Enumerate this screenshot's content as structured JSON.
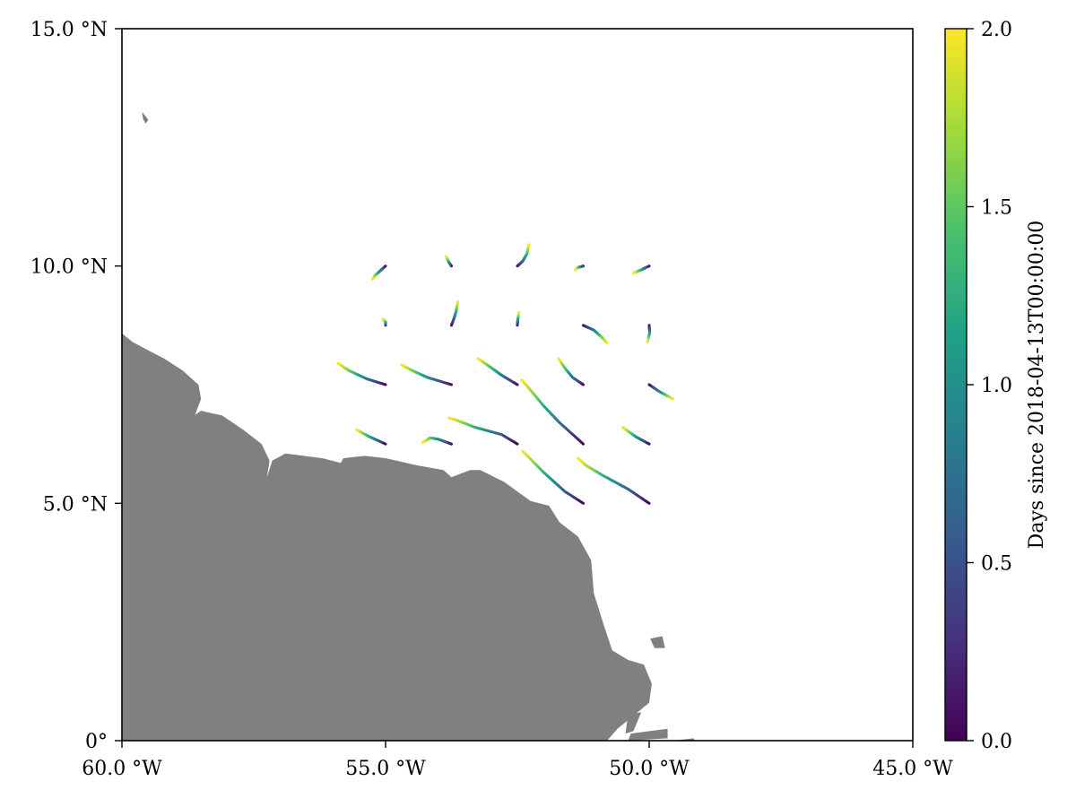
{
  "map": {
    "lon_range": [
      -60.0,
      -45.0
    ],
    "lat_range": [
      0.0,
      15.0
    ],
    "land_color": "#808080",
    "ocean_color": "#ffffff",
    "x_ticks": [
      {
        "value": -60.0,
        "label": "60.0 °W"
      },
      {
        "value": -55.0,
        "label": "55.0 °W"
      },
      {
        "value": -50.0,
        "label": "50.0 °W"
      },
      {
        "value": -45.0,
        "label": "45.0 °W"
      }
    ],
    "y_ticks": [
      {
        "value": 0.0,
        "label": "0°"
      },
      {
        "value": 5.0,
        "label": "5.0 °N"
      },
      {
        "value": 10.0,
        "label": "10.0 °N"
      },
      {
        "value": 15.0,
        "label": "15.0 °N"
      }
    ],
    "coastline": [
      [
        -60.0,
        8.58
      ],
      [
        -59.8,
        8.4
      ],
      [
        -59.55,
        8.25
      ],
      [
        -59.2,
        8.05
      ],
      [
        -58.85,
        7.8
      ],
      [
        -58.55,
        7.5
      ],
      [
        -58.5,
        7.2
      ],
      [
        -58.6,
        6.9
      ],
      [
        -58.7,
        6.65
      ],
      [
        -58.8,
        6.6
      ],
      [
        -58.7,
        6.8
      ],
      [
        -58.5,
        6.95
      ],
      [
        -58.1,
        6.85
      ],
      [
        -57.7,
        6.55
      ],
      [
        -57.35,
        6.25
      ],
      [
        -57.2,
        5.9
      ],
      [
        -57.25,
        5.55
      ],
      [
        -57.15,
        5.9
      ],
      [
        -56.9,
        6.05
      ],
      [
        -56.2,
        5.95
      ],
      [
        -55.85,
        5.85
      ],
      [
        -55.8,
        5.95
      ],
      [
        -55.4,
        6.0
      ],
      [
        -55.0,
        5.95
      ],
      [
        -54.4,
        5.8
      ],
      [
        -53.9,
        5.7
      ],
      [
        -53.75,
        5.55
      ],
      [
        -53.4,
        5.7
      ],
      [
        -53.2,
        5.7
      ],
      [
        -52.75,
        5.45
      ],
      [
        -52.25,
        5.05
      ],
      [
        -51.9,
        4.95
      ],
      [
        -51.7,
        4.6
      ],
      [
        -51.35,
        4.3
      ],
      [
        -51.1,
        3.8
      ],
      [
        -51.05,
        3.1
      ],
      [
        -50.85,
        2.4
      ],
      [
        -50.7,
        1.9
      ],
      [
        -50.4,
        1.7
      ],
      [
        -50.1,
        1.6
      ],
      [
        -49.95,
        1.2
      ],
      [
        -50.0,
        0.8
      ],
      [
        -50.6,
        0.25
      ],
      [
        -50.8,
        0.0
      ],
      [
        -60.0,
        0.0
      ]
    ],
    "islands": [
      [
        [
          -59.62,
          13.25
        ],
        [
          -59.5,
          13.08
        ],
        [
          -59.55,
          13.0
        ],
        [
          -59.6,
          13.1
        ]
      ],
      [
        [
          -49.98,
          2.15
        ],
        [
          -49.75,
          2.2
        ],
        [
          -49.7,
          1.95
        ],
        [
          -49.9,
          1.95
        ]
      ],
      [
        [
          -50.4,
          0.55
        ],
        [
          -50.15,
          0.6
        ],
        [
          -50.3,
          0.2
        ],
        [
          -50.45,
          0.15
        ]
      ],
      [
        [
          -50.35,
          0.15
        ],
        [
          -49.65,
          0.25
        ],
        [
          -49.65,
          0.05
        ],
        [
          -50.4,
          0.0
        ]
      ],
      [
        [
          -49.55,
          0.0
        ],
        [
          -49.15,
          0.05
        ],
        [
          -49.15,
          0.0
        ]
      ]
    ]
  },
  "colorbar": {
    "title": "Days since 2018-04-13T00:00:00",
    "min": 0.0,
    "max": 2.0,
    "colormap": [
      "#440154",
      "#46327e",
      "#365c8d",
      "#277f8e",
      "#1fa187",
      "#4ac16d",
      "#a0da39",
      "#fde725"
    ],
    "ticks": [
      {
        "value": 0.0,
        "label": "0.0"
      },
      {
        "value": 0.5,
        "label": "0.5"
      },
      {
        "value": 1.0,
        "label": "1.0"
      },
      {
        "value": 1.5,
        "label": "1.5"
      },
      {
        "value": 2.0,
        "label": "2.0"
      }
    ]
  },
  "trajectories": [
    {
      "start": [
        -55.0,
        10.0
      ],
      "points": [
        [
          -55.0,
          10.0
        ],
        [
          -55.1,
          9.9
        ],
        [
          -55.2,
          9.8
        ],
        [
          -55.25,
          9.72
        ]
      ]
    },
    {
      "start": [
        -53.75,
        10.0
      ],
      "points": [
        [
          -53.75,
          10.0
        ],
        [
          -53.8,
          10.08
        ],
        [
          -53.85,
          10.2
        ]
      ]
    },
    {
      "start": [
        -52.5,
        10.0
      ],
      "points": [
        [
          -52.5,
          10.0
        ],
        [
          -52.4,
          10.1
        ],
        [
          -52.32,
          10.25
        ],
        [
          -52.28,
          10.45
        ]
      ]
    },
    {
      "start": [
        -51.25,
        10.0
      ],
      "points": [
        [
          -51.25,
          10.0
        ],
        [
          -51.35,
          9.97
        ],
        [
          -51.4,
          9.92
        ]
      ]
    },
    {
      "start": [
        -50.0,
        10.0
      ],
      "points": [
        [
          -50.0,
          10.0
        ],
        [
          -50.15,
          9.92
        ],
        [
          -50.3,
          9.85
        ]
      ]
    },
    {
      "start": [
        -55.0,
        8.75
      ],
      "points": [
        [
          -55.0,
          8.75
        ],
        [
          -55.0,
          8.82
        ],
        [
          -55.05,
          8.88
        ]
      ]
    },
    {
      "start": [
        -53.75,
        8.75
      ],
      "points": [
        [
          -53.75,
          8.75
        ],
        [
          -53.7,
          8.9
        ],
        [
          -53.66,
          9.05
        ],
        [
          -53.63,
          9.25
        ]
      ]
    },
    {
      "start": [
        -52.5,
        8.75
      ],
      "points": [
        [
          -52.5,
          8.75
        ],
        [
          -52.49,
          8.88
        ],
        [
          -52.47,
          9.02
        ]
      ]
    },
    {
      "start": [
        -51.25,
        8.75
      ],
      "points": [
        [
          -51.25,
          8.75
        ],
        [
          -51.05,
          8.65
        ],
        [
          -50.9,
          8.5
        ],
        [
          -50.8,
          8.38
        ]
      ]
    },
    {
      "start": [
        -50.0,
        8.75
      ],
      "points": [
        [
          -50.0,
          8.75
        ],
        [
          -49.99,
          8.6
        ],
        [
          -50.03,
          8.4
        ]
      ]
    },
    {
      "start": [
        -55.0,
        7.5
      ],
      "points": [
        [
          -55.0,
          7.5
        ],
        [
          -55.35,
          7.62
        ],
        [
          -55.7,
          7.8
        ],
        [
          -55.9,
          7.95
        ]
      ]
    },
    {
      "start": [
        -53.75,
        7.5
      ],
      "points": [
        [
          -53.75,
          7.5
        ],
        [
          -54.2,
          7.65
        ],
        [
          -54.5,
          7.8
        ],
        [
          -54.7,
          7.92
        ]
      ]
    },
    {
      "start": [
        -52.5,
        7.5
      ],
      "points": [
        [
          -52.5,
          7.5
        ],
        [
          -52.8,
          7.7
        ],
        [
          -53.05,
          7.9
        ],
        [
          -53.25,
          8.05
        ]
      ]
    },
    {
      "start": [
        -51.25,
        7.5
      ],
      "points": [
        [
          -51.25,
          7.5
        ],
        [
          -51.45,
          7.65
        ],
        [
          -51.6,
          7.85
        ],
        [
          -51.72,
          8.05
        ]
      ]
    },
    {
      "start": [
        -50.0,
        7.5
      ],
      "points": [
        [
          -50.0,
          7.5
        ],
        [
          -49.8,
          7.35
        ],
        [
          -49.55,
          7.2
        ]
      ]
    },
    {
      "start": [
        -55.0,
        6.25
      ],
      "points": [
        [
          -55.0,
          6.25
        ],
        [
          -55.3,
          6.4
        ],
        [
          -55.55,
          6.55
        ]
      ]
    },
    {
      "start": [
        -53.75,
        6.25
      ],
      "points": [
        [
          -53.75,
          6.25
        ],
        [
          -54.0,
          6.35
        ],
        [
          -54.15,
          6.38
        ],
        [
          -54.3,
          6.28
        ]
      ]
    },
    {
      "start": [
        -52.5,
        6.25
      ],
      "points": [
        [
          -52.5,
          6.25
        ],
        [
          -52.8,
          6.45
        ],
        [
          -53.3,
          6.6
        ],
        [
          -53.65,
          6.75
        ],
        [
          -53.8,
          6.8
        ]
      ]
    },
    {
      "start": [
        -51.25,
        6.25
      ],
      "points": [
        [
          -51.25,
          6.25
        ],
        [
          -51.7,
          6.7
        ],
        [
          -52.0,
          7.05
        ],
        [
          -52.3,
          7.45
        ],
        [
          -52.42,
          7.6
        ]
      ]
    },
    {
      "start": [
        -50.0,
        6.25
      ],
      "points": [
        [
          -50.0,
          6.25
        ],
        [
          -50.25,
          6.4
        ],
        [
          -50.5,
          6.6
        ]
      ]
    },
    {
      "start": [
        -51.25,
        5.0
      ],
      "points": [
        [
          -51.25,
          5.0
        ],
        [
          -51.6,
          5.25
        ],
        [
          -52.0,
          5.65
        ],
        [
          -52.4,
          6.1
        ]
      ]
    },
    {
      "start": [
        -50.0,
        5.0
      ],
      "points": [
        [
          -50.0,
          5.0
        ],
        [
          -50.4,
          5.3
        ],
        [
          -50.9,
          5.6
        ],
        [
          -51.2,
          5.8
        ],
        [
          -51.35,
          5.95
        ]
      ]
    }
  ]
}
